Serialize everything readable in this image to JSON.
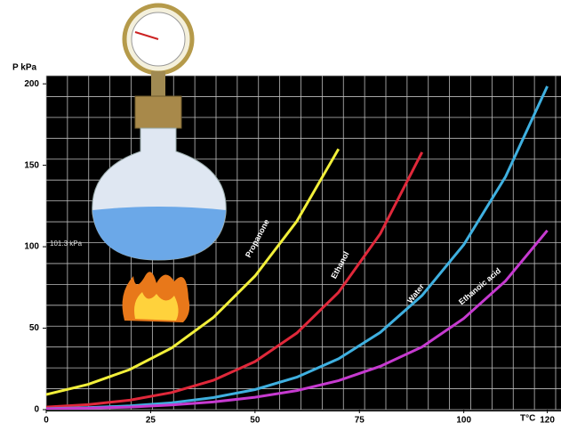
{
  "chart_data": {
    "type": "line",
    "y_label": "P kPa",
    "x_label": "T°C",
    "annotation": "101.3 kPa",
    "x": [
      0,
      10,
      20,
      30,
      40,
      50,
      60,
      70,
      80,
      90,
      100,
      110,
      120
    ],
    "series": [
      {
        "name": "Propanone",
        "color": "#f2ef3a",
        "values": [
          9.3,
          15.5,
          24.6,
          37.8,
          56.5,
          82,
          115.6,
          160,
          null,
          null,
          null,
          null,
          null
        ]
      },
      {
        "name": "Ethanol",
        "color": "#e0283a",
        "values": [
          1.6,
          3.1,
          5.8,
          10.5,
          18,
          29.5,
          47,
          72,
          108,
          158,
          null,
          null,
          null
        ]
      },
      {
        "name": "Water",
        "color": "#3fb0e0",
        "values": [
          0.6,
          1.2,
          2.3,
          4.2,
          7.4,
          12.3,
          19.9,
          31.2,
          47.4,
          70.1,
          101.3,
          143,
          198.5
        ]
      },
      {
        "name": "Ethanoic acid",
        "color": "#c63ad0",
        "values": [
          0.5,
          0.9,
          1.6,
          2.9,
          4.7,
          7.6,
          11.7,
          17.8,
          26.6,
          38.5,
          56,
          79,
          110
        ]
      }
    ],
    "xlim": [
      0,
      122
    ],
    "ylim": [
      0,
      205
    ],
    "xticks": [
      0,
      25,
      50,
      75,
      100,
      120
    ],
    "yticks": [
      0,
      50,
      100,
      150,
      200
    ],
    "grid": true
  }
}
